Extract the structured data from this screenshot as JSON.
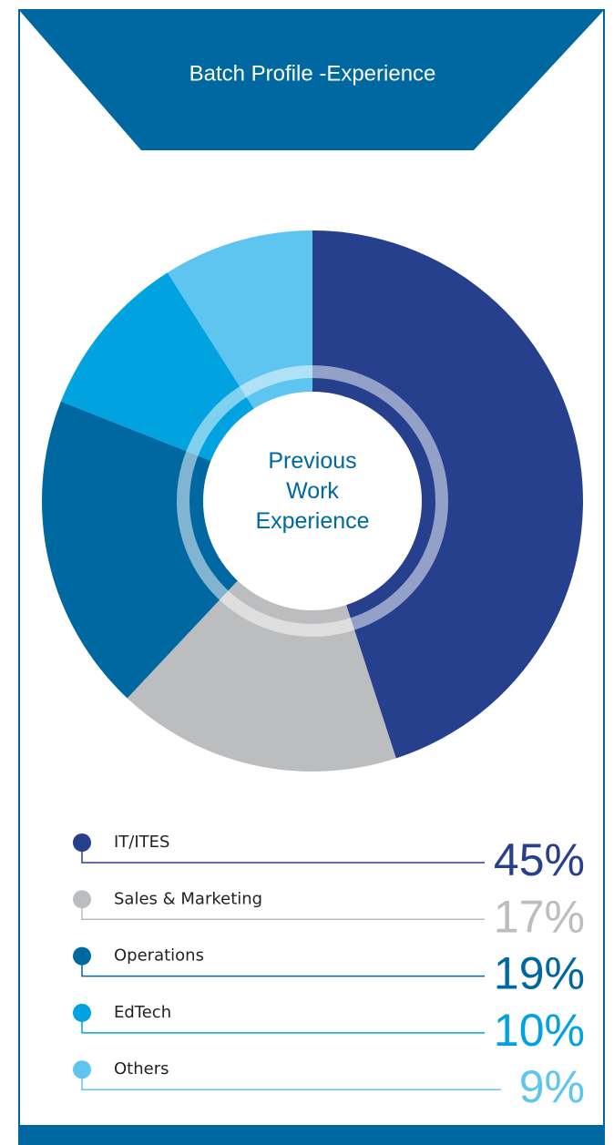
{
  "chart_data": {
    "type": "pie",
    "title": "Batch Profile -Experience",
    "center_label": "Previous Work Experience",
    "categories": [
      "IT/ITES",
      "Sales & Marketing",
      "Operations",
      "EdTech",
      "Others"
    ],
    "values": [
      45,
      17,
      19,
      10,
      9
    ],
    "value_labels": [
      "45%",
      "17%",
      "19%",
      "10%",
      "9%"
    ],
    "colors": [
      "#27408e",
      "#bcbdbf",
      "#0068a1",
      "#00a3e0",
      "#5ec4f0"
    ]
  }
}
